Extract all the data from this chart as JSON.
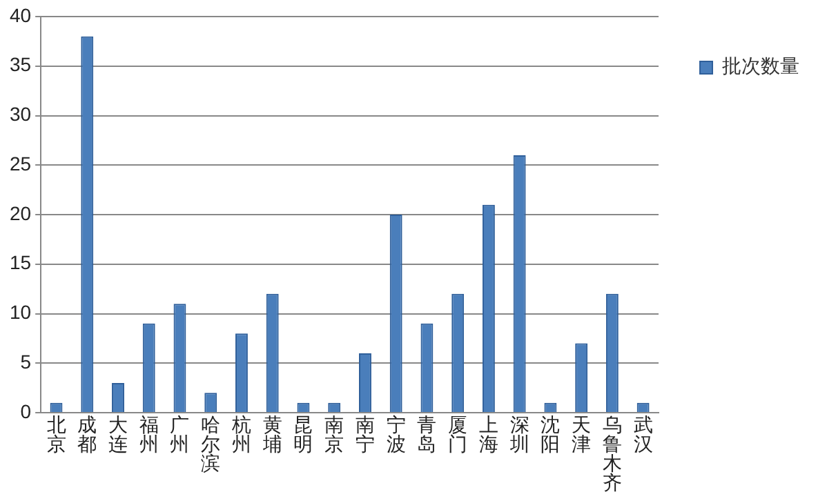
{
  "chart_data": {
    "type": "bar",
    "categories": [
      "北京",
      "成都",
      "大连",
      "福州",
      "广州",
      "哈尔滨",
      "杭州",
      "黄埔",
      "昆明",
      "南京",
      "南宁",
      "宁波",
      "青岛",
      "厦门",
      "上海",
      "深圳",
      "沈阳",
      "天津",
      "乌鲁木齐",
      "武汉"
    ],
    "series": [
      {
        "name": "批次数量",
        "color": "#4a7ebb",
        "values": [
          1,
          38,
          3,
          9,
          11,
          2,
          8,
          12,
          1,
          1,
          6,
          20,
          9,
          12,
          21,
          26,
          1,
          7,
          12,
          1
        ]
      }
    ],
    "ylim": [
      0,
      40
    ],
    "yticks": [
      0,
      5,
      10,
      15,
      20,
      25,
      30,
      35,
      40
    ],
    "grid": "y",
    "legend": "top right"
  }
}
